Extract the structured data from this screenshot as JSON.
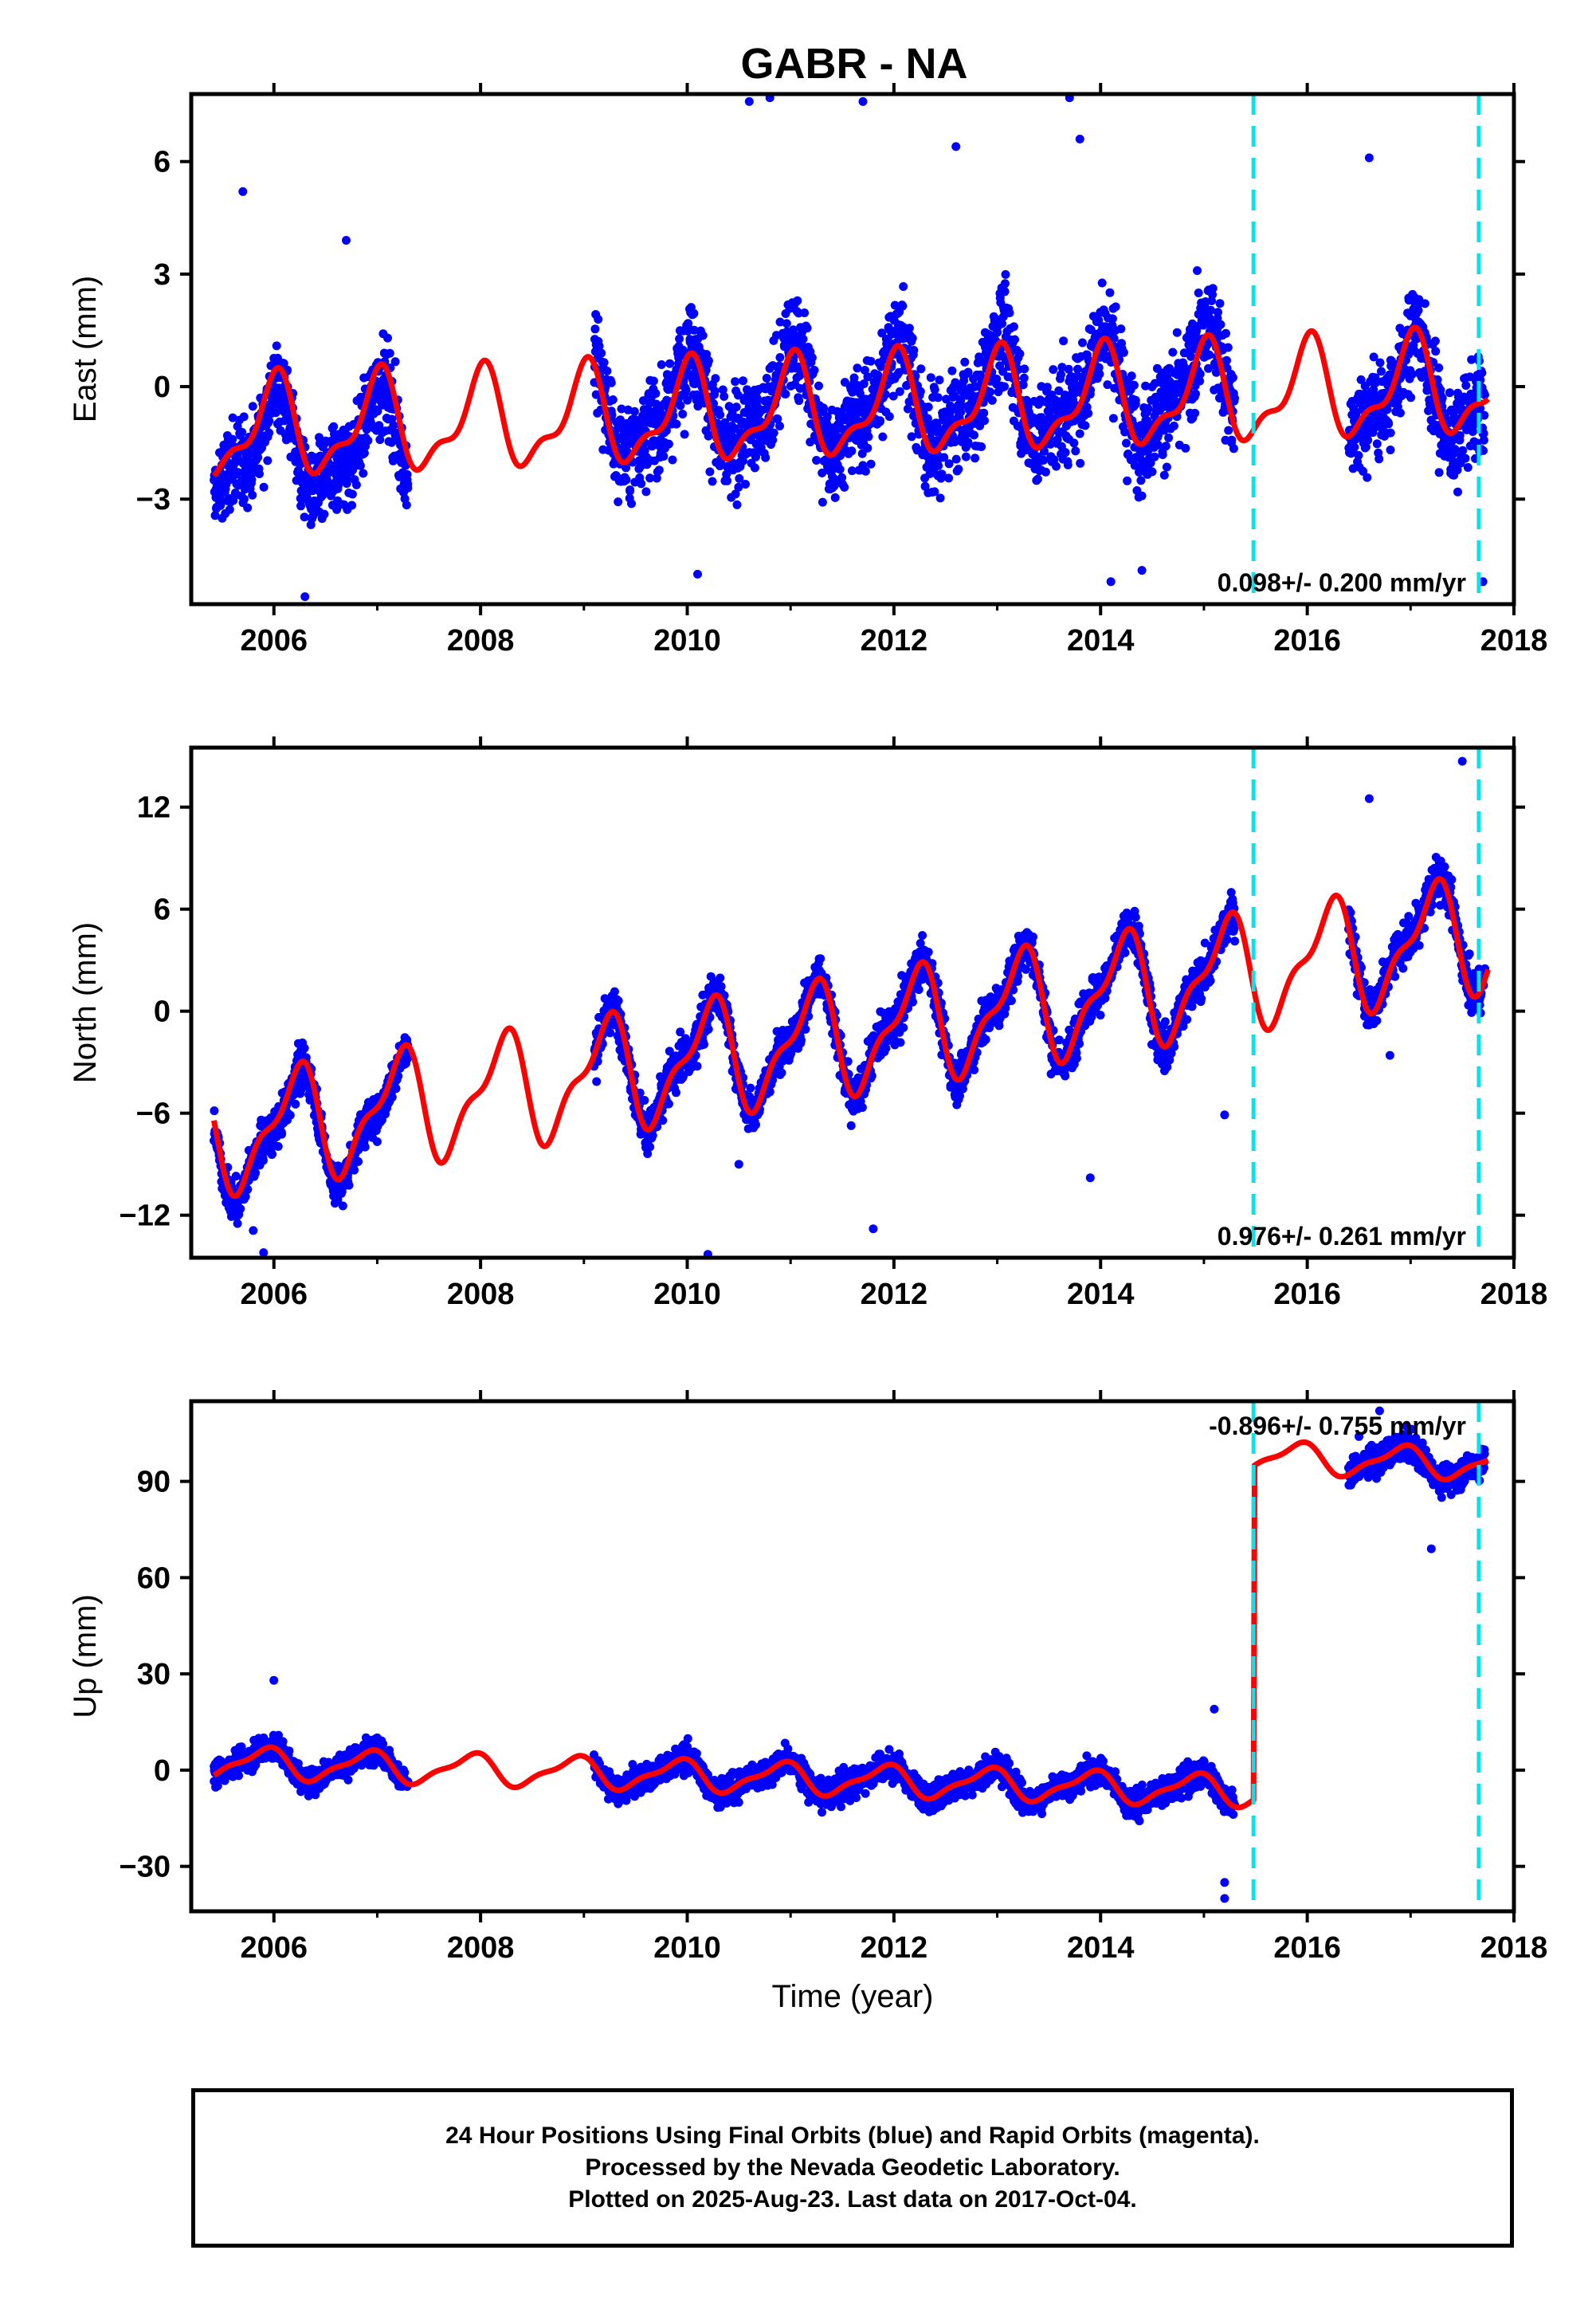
{
  "title": "GABR - NA",
  "colors": {
    "data": "#0000ff",
    "model": "#ff0000",
    "marker": "#00e5ee",
    "axis": "#000000"
  },
  "chart_data": [
    {
      "type": "scatter",
      "name": "east",
      "ylabel": "East (mm)",
      "xlabel": "",
      "xlim": [
        2005.2,
        2018.0
      ],
      "ylim": [
        -5.8,
        7.8
      ],
      "yticks": [
        -3,
        0,
        3,
        6
      ],
      "ytick_labels": [
        "−3",
        "0",
        "3",
        "6"
      ],
      "xticks": [
        2006,
        2008,
        2010,
        2012,
        2014,
        2016,
        2018
      ],
      "xtick_labels": [
        "2006",
        "2008",
        "2010",
        "2012",
        "2014",
        "2016",
        "2018"
      ],
      "annotation": "0.098+/- 0.200 mm/yr",
      "annotation_position": "bottom-right",
      "markers": [
        2015.48,
        2017.66
      ],
      "model": {
        "trend": 0.098,
        "base": -0.6,
        "ref_year": 2011.5,
        "amp1": 1.2,
        "phase1": 0.25,
        "amp2": 0.5,
        "phase2": 0.06,
        "offset_at_marker": 0
      },
      "segments": [
        {
          "from": 2005.42,
          "to": 2007.3,
          "noise": 1.5,
          "mean_shift": -0.5
        },
        {
          "from": 2009.1,
          "to": 2015.3,
          "noise": 1.7,
          "mean_shift": 0.2
        },
        {
          "from": 2016.4,
          "to": 2017.72,
          "noise": 1.6,
          "mean_shift": -0.1
        }
      ],
      "outliers": [
        [
          2005.7,
          5.2
        ],
        [
          2006.3,
          -5.6
        ],
        [
          2006.7,
          3.9
        ],
        [
          2010.6,
          7.6
        ],
        [
          2010.8,
          7.7
        ],
        [
          2011.7,
          7.6
        ],
        [
          2013.7,
          7.7
        ],
        [
          2013.8,
          6.6
        ],
        [
          2012.6,
          6.4
        ],
        [
          2014.4,
          -4.9
        ],
        [
          2014.1,
          -5.2
        ],
        [
          2016.6,
          6.1
        ],
        [
          2017.7,
          -5.2
        ],
        [
          2010.1,
          -5.0
        ]
      ]
    },
    {
      "type": "scatter",
      "name": "north",
      "ylabel": "North (mm)",
      "xlabel": "",
      "xlim": [
        2005.2,
        2018.0
      ],
      "ylim": [
        -14.5,
        15.5
      ],
      "yticks": [
        -12,
        -6,
        0,
        6,
        12
      ],
      "ytick_labels": [
        "−12",
        "−6",
        "0",
        "6",
        "12"
      ],
      "xticks": [
        2006,
        2008,
        2010,
        2012,
        2014,
        2016,
        2018
      ],
      "xtick_labels": [
        "2006",
        "2008",
        "2010",
        "2012",
        "2014",
        "2016",
        "2018"
      ],
      "annotation": "0.976+/- 0.261 mm/yr",
      "annotation_position": "bottom-right",
      "markers": [
        2015.48,
        2017.66
      ],
      "model": {
        "trend": 0.976,
        "base": -1.5,
        "ref_year": 2011.5,
        "amp1": 3.0,
        "phase1": 0.05,
        "amp2": 1.2,
        "phase2": 0.3,
        "offset_at_marker": 0
      },
      "segments": [
        {
          "from": 2005.42,
          "to": 2007.3,
          "noise": 1.5,
          "mean_shift": -0.4
        },
        {
          "from": 2009.1,
          "to": 2015.3,
          "noise": 1.6,
          "mean_shift": 0.0
        },
        {
          "from": 2016.4,
          "to": 2017.72,
          "noise": 1.6,
          "mean_shift": 0.2
        }
      ],
      "outliers": [
        [
          2005.8,
          -12.9
        ],
        [
          2005.9,
          -14.2
        ],
        [
          2010.2,
          -14.3
        ],
        [
          2011.8,
          -12.8
        ],
        [
          2013.9,
          -9.8
        ],
        [
          2015.2,
          -6.1
        ],
        [
          2016.8,
          -2.6
        ],
        [
          2017.5,
          14.7
        ],
        [
          2016.6,
          12.5
        ],
        [
          2010.5,
          -9.0
        ]
      ]
    },
    {
      "type": "scatter",
      "name": "up",
      "ylabel": "Up (mm)",
      "xlabel": "Time (year)",
      "xlim": [
        2005.2,
        2018.0
      ],
      "ylim": [
        -44,
        115
      ],
      "yticks": [
        -30,
        0,
        30,
        60,
        90
      ],
      "ytick_labels": [
        "−30",
        "0",
        "30",
        "60",
        "90"
      ],
      "xticks": [
        2006,
        2008,
        2010,
        2012,
        2014,
        2016,
        2018
      ],
      "xtick_labels": [
        "2006",
        "2008",
        "2010",
        "2012",
        "2014",
        "2016",
        "2018"
      ],
      "annotation": "-0.896+/- 0.755 mm/yr",
      "annotation_position": "top-right",
      "markers": [
        2015.48,
        2017.66
      ],
      "model": {
        "trend": -0.896,
        "base": -3.0,
        "ref_year": 2011.5,
        "amp1": 4.5,
        "phase1": 0.35,
        "amp2": 1.5,
        "phase2": 0.1,
        "offset_at_marker": 104
      },
      "segments": [
        {
          "from": 2005.42,
          "to": 2007.3,
          "noise": 5.0,
          "mean_shift": 0.0
        },
        {
          "from": 2009.1,
          "to": 2015.3,
          "noise": 5.5,
          "mean_shift": 0.0
        },
        {
          "from": 2016.4,
          "to": 2017.72,
          "noise": 5.5,
          "mean_shift": 0.0
        }
      ],
      "outliers": [
        [
          2006.0,
          28
        ],
        [
          2015.2,
          -40
        ],
        [
          2015.2,
          -35
        ],
        [
          2015.1,
          19
        ],
        [
          2016.7,
          112
        ],
        [
          2017.2,
          69
        ],
        [
          2016.5,
          104
        ]
      ]
    }
  ],
  "footer": {
    "line1": "24 Hour Positions Using Final Orbits (blue) and Rapid Orbits (magenta).",
    "line2": "Processed by the Nevada Geodetic Laboratory.",
    "line3": "Plotted on 2025-Aug-23. Last data on 2017-Oct-04."
  }
}
